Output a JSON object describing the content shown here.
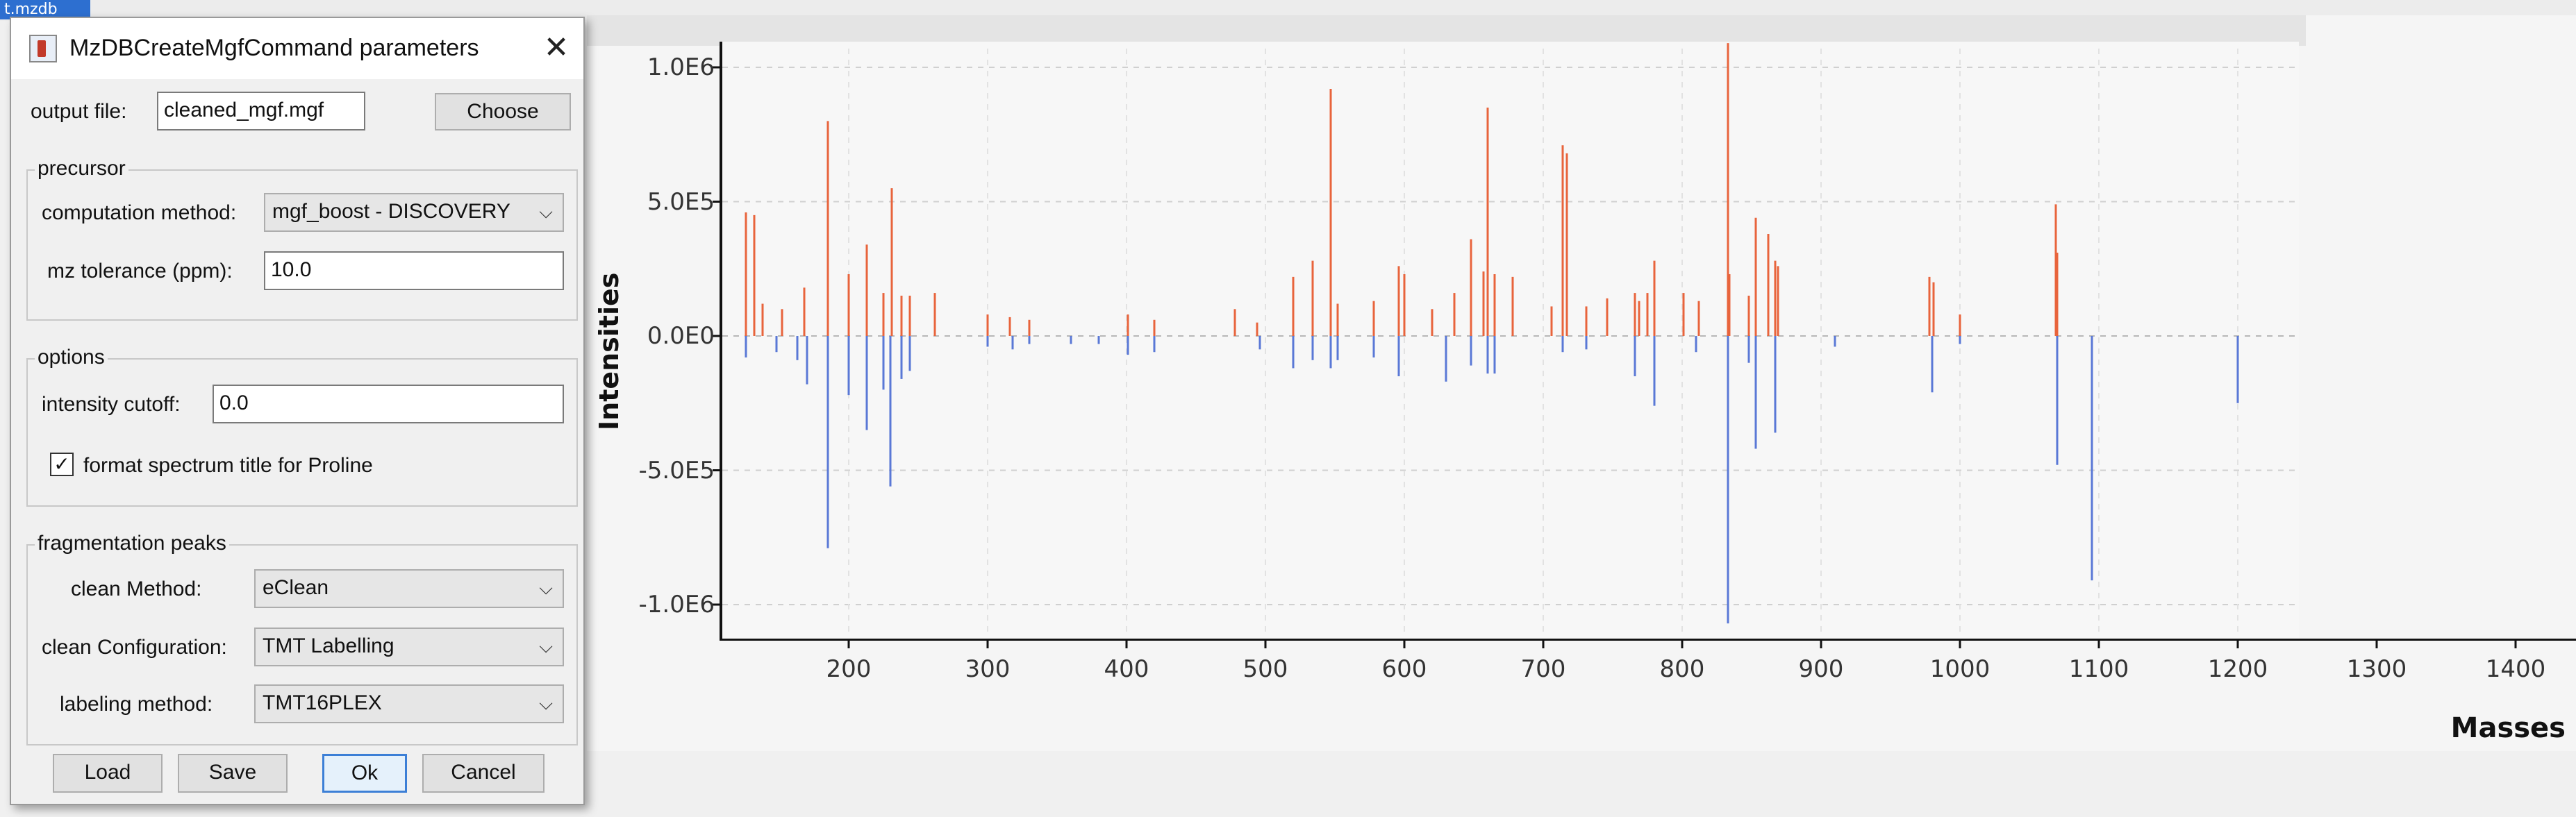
{
  "background": {
    "file_label": "t.mzdb"
  },
  "dialog": {
    "title": "MzDBCreateMgfCommand parameters",
    "output_file": {
      "label": "output file:",
      "value": "cleaned_mgf.mgf",
      "choose_label": "Choose"
    },
    "precursor": {
      "title": "precursor",
      "computation_method_label": "computation method:",
      "computation_method_value": "mgf_boost - DISCOVERY",
      "mz_tolerance_label": "mz tolerance (ppm):",
      "mz_tolerance_value": "10.0"
    },
    "options": {
      "title": "options",
      "intensity_cutoff_label": "intensity cutoff:",
      "intensity_cutoff_value": "0.0",
      "format_title_label": "format spectrum title for Proline",
      "format_title_checked": true,
      "check_glyph": "✓"
    },
    "fragmentation": {
      "title": "fragmentation peaks",
      "clean_method_label": "clean Method:",
      "clean_method_value": "eClean",
      "clean_configuration_label": "clean Configuration:",
      "clean_configuration_value": "TMT Labelling",
      "labeling_method_label": "labeling method:",
      "labeling_method_value": "TMT16PLEX"
    },
    "buttons": {
      "load": "Load",
      "save": "Save",
      "ok": "Ok",
      "cancel": "Cancel"
    },
    "close_glyph": "✕",
    "chevron_glyph": "⌵"
  },
  "chart_data": {
    "type": "bar",
    "xlabel": "Masses",
    "ylabel": "Intensities",
    "xlim": [
      115,
      1430
    ],
    "ylim": [
      -1100000,
      1100000
    ],
    "x_ticks": [
      "200",
      "300",
      "400",
      "500",
      "600",
      "700",
      "800",
      "900",
      "1000",
      "1100",
      "1200",
      "1300",
      "1400"
    ],
    "y_ticks": [
      "1.0E6",
      "5.0E5",
      "0.0E0",
      "-5.0E5",
      "-1.0E6"
    ],
    "grid": true,
    "colors": {
      "positive": "#e8643c",
      "negative": "#5a78d6"
    },
    "series": [
      {
        "x": [
          126,
          132,
          138,
          152,
          168,
          185,
          200,
          213,
          225,
          231,
          238,
          244,
          262,
          300,
          316,
          330,
          401,
          420,
          478,
          494,
          520,
          534,
          547,
          552,
          578,
          596,
          600,
          620,
          636,
          648,
          657,
          660,
          665,
          678,
          706,
          714,
          717,
          731,
          746,
          766,
          769,
          775,
          780,
          801,
          812,
          833,
          834,
          848,
          853,
          862,
          867,
          869,
          978,
          981,
          1000,
          1069,
          1070
        ],
        "values": [
          460000,
          450000,
          120000,
          100000,
          180000,
          800000,
          230000,
          340000,
          160000,
          550000,
          150000,
          150000,
          160000,
          80000,
          70000,
          60000,
          80000,
          60000,
          100000,
          50000,
          220000,
          280000,
          920000,
          120000,
          130000,
          260000,
          230000,
          100000,
          160000,
          360000,
          240000,
          850000,
          230000,
          220000,
          110000,
          710000,
          680000,
          110000,
          140000,
          160000,
          130000,
          160000,
          280000,
          160000,
          130000,
          1090000,
          230000,
          150000,
          440000,
          380000,
          280000,
          260000,
          220000,
          200000,
          80000,
          490000,
          310000
        ]
      },
      {
        "x": [
          126,
          148,
          163,
          170,
          185,
          200,
          213,
          225,
          230,
          238,
          244,
          300,
          318,
          330,
          360,
          380,
          401,
          420,
          496,
          520,
          534,
          547,
          552,
          578,
          596,
          630,
          648,
          660,
          665,
          714,
          731,
          766,
          780,
          810,
          833,
          848,
          853,
          867,
          910,
          980,
          1000,
          1070,
          1095,
          1200
        ],
        "values": [
          -80000,
          -60000,
          -90000,
          -180000,
          -790000,
          -220000,
          -350000,
          -200000,
          -560000,
          -160000,
          -130000,
          -40000,
          -50000,
          -30000,
          -30000,
          -30000,
          -70000,
          -60000,
          -50000,
          -120000,
          -90000,
          -120000,
          -90000,
          -80000,
          -150000,
          -170000,
          -110000,
          -140000,
          -140000,
          -60000,
          -50000,
          -150000,
          -260000,
          -60000,
          -1070000,
          -100000,
          -420000,
          -360000,
          -40000,
          -210000,
          -30000,
          -480000,
          -910000,
          -250000
        ]
      }
    ]
  }
}
